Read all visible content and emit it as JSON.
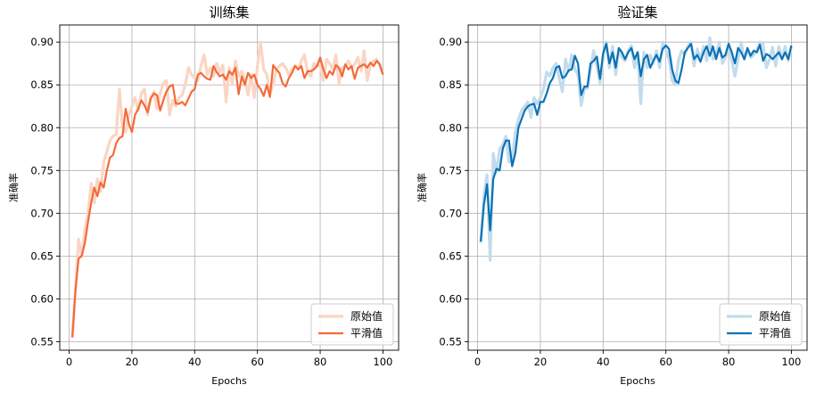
{
  "figure": {
    "panels": [
      {
        "title": "训练集",
        "xlabel": "Epochs",
        "ylabel": "准确率",
        "smooth_color": "#f26b3a",
        "raw_color": "#fbd5c4",
        "legend": {
          "raw": "原始值",
          "smooth": "平滑值",
          "position": "lower-right"
        }
      },
      {
        "title": "验证集",
        "xlabel": "Epochs",
        "ylabel": "准确率",
        "smooth_color": "#0b72b5",
        "raw_color": "#c2dcec",
        "legend": {
          "raw": "原始值",
          "smooth": "平滑值",
          "position": "lower-right"
        }
      }
    ]
  },
  "chart_data": [
    {
      "type": "line",
      "title": "训练集",
      "xlabel": "Epochs",
      "ylabel": "准确率",
      "xlim": [
        -3,
        105
      ],
      "ylim": [
        0.54,
        0.92
      ],
      "xticks": [
        0,
        20,
        40,
        60,
        80,
        100
      ],
      "yticks": [
        0.55,
        0.6,
        0.65,
        0.7,
        0.75,
        0.8,
        0.85,
        0.9
      ],
      "grid": true,
      "legend_position": "lower-right",
      "x": [
        1,
        2,
        3,
        4,
        5,
        6,
        7,
        8,
        9,
        10,
        11,
        12,
        13,
        14,
        15,
        16,
        17,
        18,
        19,
        20,
        21,
        22,
        23,
        24,
        25,
        26,
        27,
        28,
        29,
        30,
        31,
        32,
        33,
        34,
        35,
        36,
        37,
        38,
        39,
        40,
        41,
        42,
        43,
        44,
        45,
        46,
        47,
        48,
        49,
        50,
        51,
        52,
        53,
        54,
        55,
        56,
        57,
        58,
        59,
        60,
        61,
        62,
        63,
        64,
        65,
        66,
        67,
        68,
        69,
        70,
        71,
        72,
        73,
        74,
        75,
        76,
        77,
        78,
        79,
        80,
        81,
        82,
        83,
        84,
        85,
        86,
        87,
        88,
        89,
        90,
        91,
        92,
        93,
        94,
        95,
        96,
        97,
        98,
        99,
        100
      ],
      "series": [
        {
          "name": "原始值",
          "values": [
            0.555,
            0.61,
            0.67,
            0.65,
            0.68,
            0.7,
            0.735,
            0.712,
            0.74,
            0.725,
            0.76,
            0.772,
            0.785,
            0.79,
            0.792,
            0.845,
            0.8,
            0.795,
            0.815,
            0.825,
            0.835,
            0.82,
            0.84,
            0.845,
            0.815,
            0.835,
            0.842,
            0.822,
            0.84,
            0.852,
            0.855,
            0.815,
            0.832,
            0.825,
            0.835,
            0.838,
            0.85,
            0.87,
            0.862,
            0.858,
            0.855,
            0.872,
            0.885,
            0.862,
            0.87,
            0.86,
            0.875,
            0.865,
            0.873,
            0.83,
            0.87,
            0.852,
            0.878,
            0.86,
            0.866,
            0.855,
            0.838,
            0.862,
            0.835,
            0.872,
            0.9,
            0.868,
            0.862,
            0.84,
            0.85,
            0.868,
            0.872,
            0.875,
            0.87,
            0.862,
            0.868,
            0.873,
            0.868,
            0.878,
            0.885,
            0.864,
            0.86,
            0.875,
            0.872,
            0.873,
            0.855,
            0.88,
            0.875,
            0.868,
            0.885,
            0.852,
            0.87,
            0.872,
            0.878,
            0.87,
            0.874,
            0.882,
            0.866,
            0.89,
            0.855,
            0.873,
            0.878,
            0.88,
            0.872,
            0.863
          ]
        },
        {
          "name": "平滑值",
          "values": [
            0.555,
            0.61,
            0.647,
            0.65,
            0.665,
            0.69,
            0.712,
            0.73,
            0.72,
            0.736,
            0.73,
            0.75,
            0.765,
            0.768,
            0.782,
            0.788,
            0.79,
            0.822,
            0.805,
            0.795,
            0.815,
            0.822,
            0.832,
            0.826,
            0.818,
            0.834,
            0.84,
            0.838,
            0.82,
            0.832,
            0.842,
            0.848,
            0.85,
            0.828,
            0.828,
            0.83,
            0.826,
            0.834,
            0.842,
            0.845,
            0.862,
            0.864,
            0.86,
            0.857,
            0.856,
            0.872,
            0.865,
            0.86,
            0.862,
            0.856,
            0.866,
            0.862,
            0.87,
            0.839,
            0.86,
            0.85,
            0.864,
            0.858,
            0.862,
            0.85,
            0.845,
            0.837,
            0.85,
            0.836,
            0.873,
            0.868,
            0.864,
            0.852,
            0.848,
            0.858,
            0.864,
            0.872,
            0.868,
            0.872,
            0.858,
            0.866,
            0.866,
            0.868,
            0.872,
            0.882,
            0.868,
            0.858,
            0.866,
            0.862,
            0.873,
            0.87,
            0.86,
            0.874,
            0.868,
            0.872,
            0.857,
            0.87,
            0.872,
            0.874,
            0.87,
            0.876,
            0.872,
            0.878,
            0.874,
            0.862
          ]
        }
      ]
    },
    {
      "type": "line",
      "title": "验证集",
      "xlabel": "Epochs",
      "ylabel": "准确率",
      "xlim": [
        -3,
        105
      ],
      "ylim": [
        0.54,
        0.92
      ],
      "xticks": [
        0,
        20,
        40,
        60,
        80,
        100
      ],
      "yticks": [
        0.55,
        0.6,
        0.65,
        0.7,
        0.75,
        0.8,
        0.85,
        0.9
      ],
      "grid": true,
      "legend_position": "lower-right",
      "x": [
        1,
        2,
        3,
        4,
        5,
        6,
        7,
        8,
        9,
        10,
        11,
        12,
        13,
        14,
        15,
        16,
        17,
        18,
        19,
        20,
        21,
        22,
        23,
        24,
        25,
        26,
        27,
        28,
        29,
        30,
        31,
        32,
        33,
        34,
        35,
        36,
        37,
        38,
        39,
        40,
        41,
        42,
        43,
        44,
        45,
        46,
        47,
        48,
        49,
        50,
        51,
        52,
        53,
        54,
        55,
        56,
        57,
        58,
        59,
        60,
        61,
        62,
        63,
        64,
        65,
        66,
        67,
        68,
        69,
        70,
        71,
        72,
        73,
        74,
        75,
        76,
        77,
        78,
        79,
        80,
        81,
        82,
        83,
        84,
        85,
        86,
        87,
        88,
        89,
        90,
        91,
        92,
        93,
        94,
        95,
        96,
        97,
        98,
        99,
        100
      ],
      "series": [
        {
          "name": "原始值",
          "values": [
            0.665,
            0.72,
            0.745,
            0.645,
            0.77,
            0.748,
            0.775,
            0.78,
            0.79,
            0.76,
            0.762,
            0.795,
            0.81,
            0.82,
            0.825,
            0.83,
            0.812,
            0.835,
            0.828,
            0.835,
            0.845,
            0.865,
            0.86,
            0.87,
            0.875,
            0.858,
            0.842,
            0.88,
            0.866,
            0.885,
            0.868,
            0.862,
            0.826,
            0.845,
            0.846,
            0.868,
            0.89,
            0.872,
            0.852,
            0.882,
            0.9,
            0.87,
            0.895,
            0.862,
            0.892,
            0.882,
            0.878,
            0.89,
            0.896,
            0.87,
            0.888,
            0.828,
            0.888,
            0.87,
            0.885,
            0.875,
            0.89,
            0.87,
            0.9,
            0.89,
            0.88,
            0.855,
            0.85,
            0.878,
            0.89,
            0.885,
            0.895,
            0.9,
            0.872,
            0.892,
            0.88,
            0.895,
            0.878,
            0.905,
            0.88,
            0.885,
            0.9,
            0.875,
            0.882,
            0.895,
            0.878,
            0.86,
            0.88,
            0.9,
            0.88,
            0.89,
            0.882,
            0.885,
            0.89,
            0.9,
            0.898,
            0.87,
            0.88,
            0.894,
            0.872,
            0.895,
            0.88,
            0.895,
            0.878,
            0.895
          ]
        },
        {
          "name": "平滑值",
          "values": [
            0.667,
            0.71,
            0.734,
            0.68,
            0.74,
            0.752,
            0.75,
            0.775,
            0.785,
            0.785,
            0.755,
            0.77,
            0.8,
            0.81,
            0.82,
            0.825,
            0.827,
            0.828,
            0.815,
            0.83,
            0.83,
            0.84,
            0.852,
            0.858,
            0.87,
            0.872,
            0.858,
            0.86,
            0.867,
            0.868,
            0.884,
            0.875,
            0.838,
            0.848,
            0.848,
            0.875,
            0.878,
            0.883,
            0.857,
            0.887,
            0.898,
            0.875,
            0.888,
            0.87,
            0.893,
            0.888,
            0.88,
            0.888,
            0.893,
            0.88,
            0.888,
            0.86,
            0.88,
            0.885,
            0.87,
            0.878,
            0.885,
            0.877,
            0.892,
            0.896,
            0.892,
            0.868,
            0.855,
            0.852,
            0.868,
            0.888,
            0.893,
            0.898,
            0.88,
            0.885,
            0.877,
            0.888,
            0.895,
            0.884,
            0.895,
            0.88,
            0.893,
            0.882,
            0.885,
            0.898,
            0.888,
            0.875,
            0.893,
            0.888,
            0.88,
            0.893,
            0.884,
            0.89,
            0.888,
            0.897,
            0.878,
            0.886,
            0.884,
            0.88,
            0.884,
            0.888,
            0.88,
            0.888,
            0.88,
            0.896
          ]
        }
      ]
    }
  ]
}
